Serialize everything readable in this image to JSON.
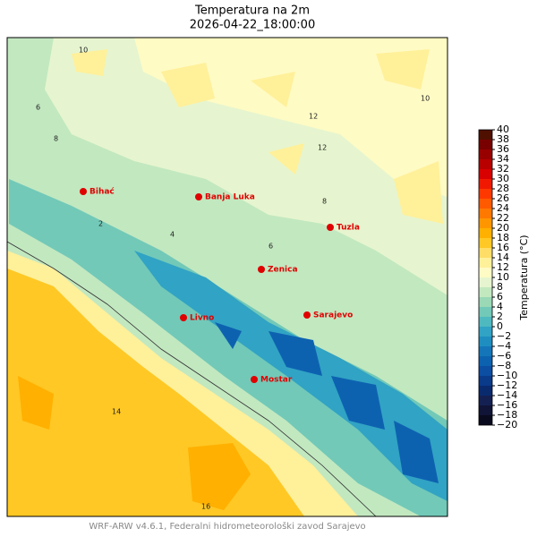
{
  "title": "Temperatura na 2m",
  "subtitle": "2026-04-22_18:00:00",
  "cities": [
    "Bihać",
    "Banja Luka",
    "Tuzla",
    "Zenica",
    "Livno",
    "Sarajevo",
    "Mostar"
  ],
  "contour_labels": [
    "10",
    "12",
    "8",
    "6",
    "4",
    "2",
    "14",
    "16",
    "12",
    "10",
    "6",
    "8"
  ],
  "colorbar": {
    "label": "Temperatura (°C)",
    "ticks": [
      {
        "value": -20,
        "label": "−20"
      },
      {
        "value": -18,
        "label": "−18"
      },
      {
        "value": -16,
        "label": "−16"
      },
      {
        "value": -14,
        "label": "−14"
      },
      {
        "value": -12,
        "label": "−12"
      },
      {
        "value": -10,
        "label": "−10"
      },
      {
        "value": -8,
        "label": "−8"
      },
      {
        "value": -6,
        "label": "−6"
      },
      {
        "value": -4,
        "label": "−4"
      },
      {
        "value": -2,
        "label": "−2"
      },
      0,
      2,
      4,
      6,
      8,
      10,
      12,
      14,
      16,
      18,
      20,
      22,
      24,
      26,
      28,
      30,
      32,
      34,
      36,
      38,
      40
    ],
    "colors": [
      "#0a0a1e",
      "#101436",
      "#142052",
      "#0a2a6e",
      "#0a3a8a",
      "#0b4ea2",
      "#0d62b0",
      "#1476b8",
      "#1e8ec0",
      "#31a3c4",
      "#4fb9c0",
      "#72c9b8",
      "#9ad8b6",
      "#c2e8c0",
      "#e6f5cf",
      "#fffbc4",
      "#fff09a",
      "#ffdd66",
      "#ffc824",
      "#ffb000",
      "#ff9600",
      "#ff7800",
      "#ff5a00",
      "#ff3800",
      "#f01800",
      "#d80000",
      "#b80000",
      "#980000",
      "#780000",
      "#501000"
    ]
  },
  "footer": "WRF-ARW v4.6.1, Federalni hidrometeorološki zavod Sarajevo"
}
